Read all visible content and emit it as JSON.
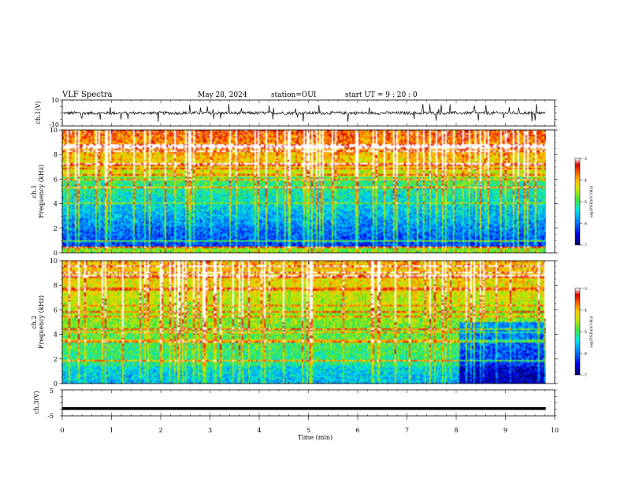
{
  "header": {
    "title": "VLF Spectra",
    "date": "May 28, 2024",
    "station": "station=OUI",
    "start": "start UT = 9 : 20 : 0"
  },
  "chart_data": [
    {
      "name": "ch1-waveform",
      "type": "line",
      "ylabel": "ch.1(V)",
      "ylim": [
        -10,
        10
      ],
      "yticks": [
        "10",
        "-10"
      ],
      "xlim": [
        0,
        10
      ],
      "line_end_x": 9.82,
      "baseline": 0,
      "grid": false
    },
    {
      "name": "ch1-spectrogram",
      "type": "heatmap",
      "ylabel_line1": "ch.1",
      "ylabel_line2": "Frequency (kHz)",
      "ylim": [
        0,
        10
      ],
      "yticks": [
        "0",
        "2",
        "4",
        "6",
        "8",
        "10"
      ],
      "xlim": [
        0,
        10
      ],
      "data_end_x": 9.82,
      "colorbar": {
        "label": "log(PSD)(V²/Hz)",
        "range": [
          -7,
          -3
        ],
        "ticks": [
          "-3",
          "-4",
          "-5",
          "-6",
          "-7"
        ]
      }
    },
    {
      "name": "ch2-spectrogram",
      "type": "heatmap",
      "ylabel_line1": "ch.2",
      "ylabel_line2": "Frequency (kHz)",
      "ylim": [
        0,
        10
      ],
      "yticks": [
        "0",
        "2",
        "4",
        "6",
        "8",
        "10"
      ],
      "xlim": [
        0,
        10
      ],
      "data_end_x": 9.82,
      "colorbar": {
        "label": "log(PSD)(V²/Hz)",
        "range": [
          -7,
          -3
        ],
        "ticks": [
          "-3",
          "-4",
          "-5",
          "-6",
          "-7"
        ]
      }
    },
    {
      "name": "ch3-waveform",
      "type": "line",
      "ylabel": "ch.3(V)",
      "ylim": [
        -5,
        5
      ],
      "yticks": [
        "5",
        "0",
        "-5"
      ],
      "xlim": [
        0,
        10
      ],
      "line_value": -2.2,
      "line_end_x": 9.82,
      "grid": false
    }
  ],
  "xaxis": {
    "label": "Time (min)",
    "ticks": [
      "0",
      "1",
      "2",
      "3",
      "4",
      "5",
      "6",
      "7",
      "8",
      "9",
      "10"
    ]
  }
}
